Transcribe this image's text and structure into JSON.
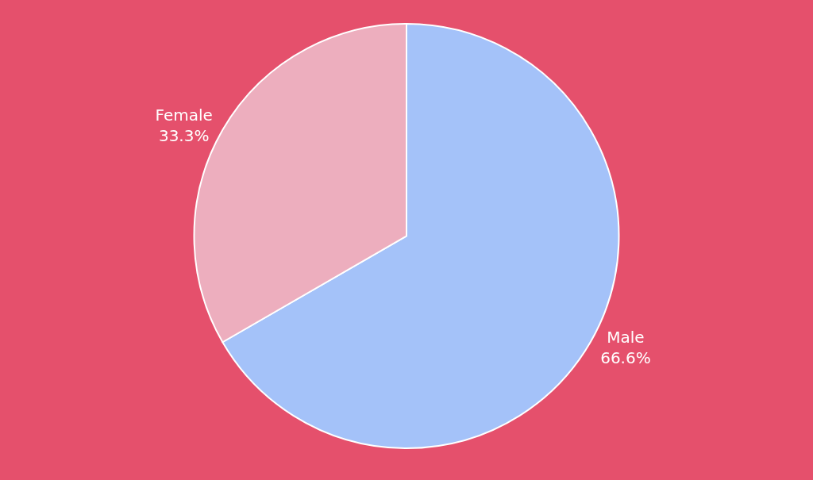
{
  "chart_data": {
    "type": "pie",
    "categories": [
      "Male",
      "Female"
    ],
    "values": [
      66.6,
      33.3
    ],
    "value_labels": [
      "66.6%",
      "33.3%"
    ],
    "colors": [
      "#a4c2f9",
      "#edaebe"
    ],
    "legend": false
  }
}
